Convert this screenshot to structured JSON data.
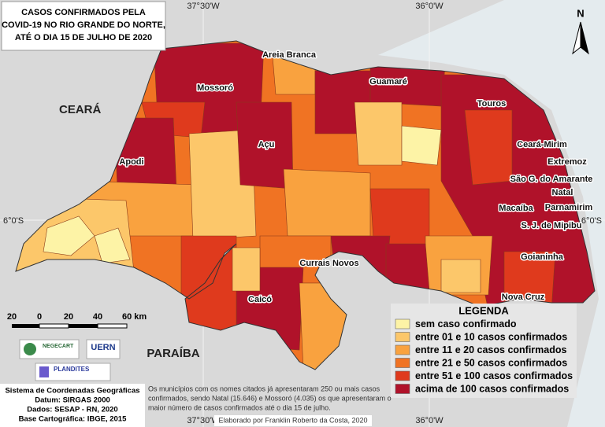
{
  "title": [
    "CASOS CONFIRMADOS PELA",
    "COVID-19 NO RIO GRANDE DO NORTE,",
    "ATÉ O DIA 15 DE JULHO DE 2020"
  ],
  "graticule": {
    "top": [
      "37°30'W",
      "36°0'W"
    ],
    "bottom": [
      "37°30'W",
      "36°0'W"
    ],
    "left": "6°0'S",
    "right": "6°0'S"
  },
  "north": "N",
  "neighbors": [
    "CEARÁ",
    "PARAÍBA"
  ],
  "cities": [
    "Areia Branca",
    "Mossoró",
    "Guamaré",
    "Touros",
    "Apodi",
    "Açu",
    "Ceará-Mirim",
    "Extremoz",
    "São G. do Amarante",
    "Natal",
    "Macaíba",
    "Parnamirim",
    "S. J. de Mipibu",
    "Currais Novos",
    "Goianinha",
    "Caicó",
    "Nova Cruz"
  ],
  "scale": [
    "20",
    "0",
    "20",
    "40",
    "60 km"
  ],
  "legend": {
    "title": "LEGENDA",
    "items": [
      {
        "label": "sem caso confirmado",
        "color": "#fdf3a6"
      },
      {
        "label": "entre 01 e 10 casos confirmados",
        "color": "#fcc76a"
      },
      {
        "label": "entre 11 e 20 casos confirmados",
        "color": "#f9a23f"
      },
      {
        "label": "entre 21 e 50 casos confirmados",
        "color": "#f07323"
      },
      {
        "label": "entre 51 e 100 casos confirmados",
        "color": "#df3a1d"
      },
      {
        "label": "acima de 100 casos confirmados",
        "color": "#b0122a"
      }
    ]
  },
  "logos": [
    "NEGECART",
    "UERN",
    "PLANDITES"
  ],
  "footer": [
    "Sistema de Coordenadas Geográficas",
    "Datum: SIRGAS 2000",
    "Dados: SESAP - RN, 2020",
    "Base Cartográfica: IBGE, 2015"
  ],
  "note": [
    "Os municípios com os nomes citados já apresentaram 250 ou mais casos",
    "confirmados, sendo Natal (15.646) e Mossoró (4.035) os que apresentaram o",
    "maior número de casos confirmados até o dia 15 de julho."
  ],
  "credit": "Elaborado por Franklin Roberto da Costa, 2020"
}
